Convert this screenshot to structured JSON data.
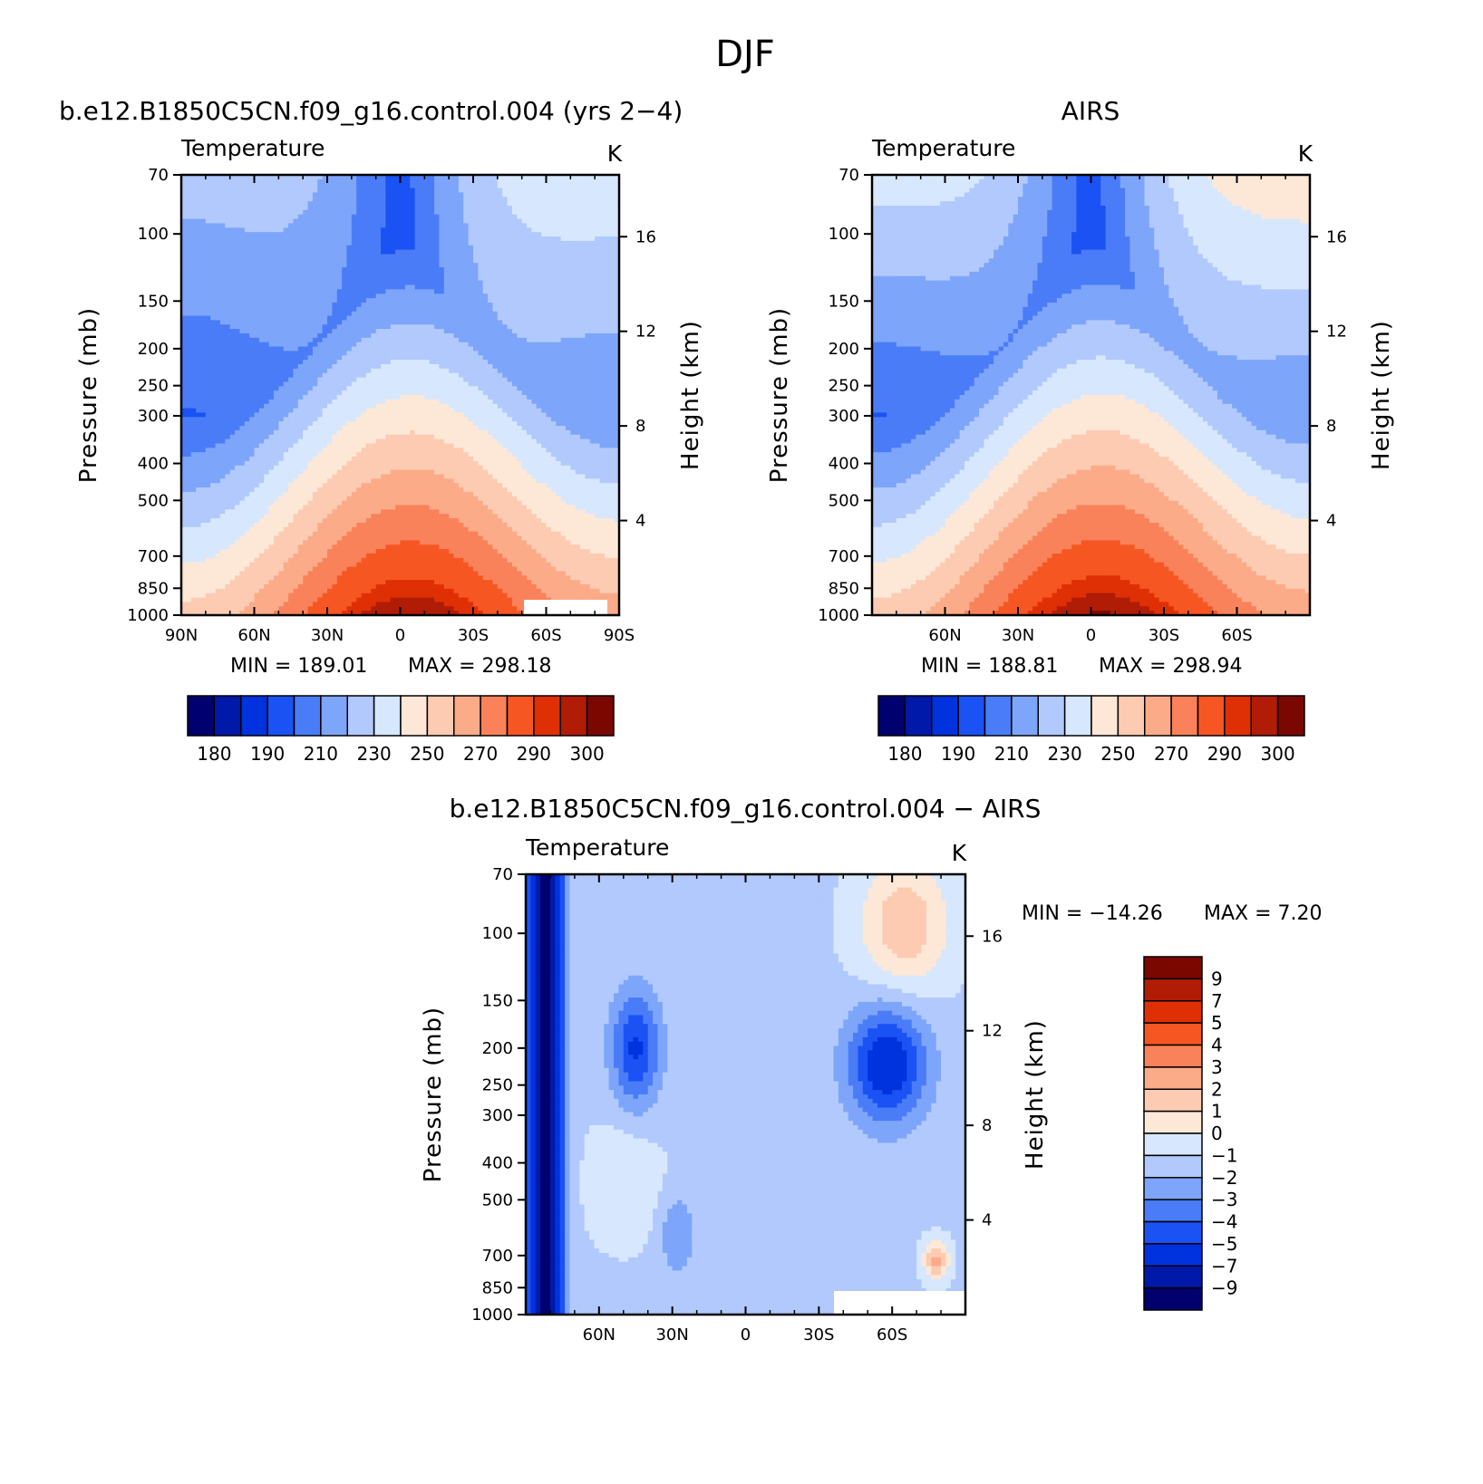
{
  "figure": {
    "main_title": "DJF"
  },
  "chart_data": [
    {
      "type": "heatmap",
      "panel": "model",
      "title": "b.e12.B1850C5CN.f09_g16.control.004 (yrs 2−4)",
      "left_label": "Temperature",
      "units": "K",
      "ylabel": "Pressure (mb)",
      "ylabel_right": "Height (km)",
      "x_tick_labels": [
        "90N",
        "60N",
        "30N",
        "0",
        "30S",
        "60S",
        "90S"
      ],
      "x_ticks": [
        90,
        60,
        30,
        0,
        -30,
        -60,
        -90
      ],
      "xlim": [
        90,
        -90
      ],
      "y_ticks": [
        70,
        100,
        150,
        200,
        250,
        300,
        400,
        500,
        700,
        850,
        1000
      ],
      "y_tick_labels": [
        "70",
        "100",
        "150",
        "200",
        "250",
        "300",
        "400",
        "500",
        "700",
        "850",
        "1000"
      ],
      "ylim": [
        70,
        1000
      ],
      "y_scale": "log",
      "height_ticks": [
        16,
        12,
        8,
        4
      ],
      "height_tick_labels": [
        "16",
        "12",
        "8",
        "4"
      ],
      "min_label": "MIN =  189.01",
      "max_label": "MAX =  298.18",
      "min": 189.01,
      "max": 298.18,
      "contour_levels": [
        180,
        185,
        190,
        200,
        210,
        220,
        230,
        240,
        250,
        260,
        270,
        280,
        290,
        295,
        300
      ],
      "colorbar_labels": [
        "180",
        "190",
        "210",
        "230",
        "250",
        "270",
        "290",
        "300"
      ]
    },
    {
      "type": "heatmap",
      "panel": "obs",
      "title": "AIRS",
      "left_label": "Temperature",
      "units": "K",
      "ylabel": "Pressure (mb)",
      "ylabel_right": "Height (km)",
      "x_tick_labels": [
        "60N",
        "30N",
        "0",
        "30S",
        "60S"
      ],
      "x_ticks": [
        60,
        30,
        0,
        -30,
        -60
      ],
      "xlim": [
        90,
        -90
      ],
      "y_ticks": [
        70,
        100,
        150,
        200,
        250,
        300,
        400,
        500,
        700,
        850,
        1000
      ],
      "y_tick_labels": [
        "70",
        "100",
        "150",
        "200",
        "250",
        "300",
        "400",
        "500",
        "700",
        "850",
        "1000"
      ],
      "ylim": [
        70,
        1000
      ],
      "y_scale": "log",
      "height_ticks": [
        16,
        12,
        8,
        4
      ],
      "height_tick_labels": [
        "16",
        "12",
        "8",
        "4"
      ],
      "min_label": "MIN =  188.81",
      "max_label": "MAX =  298.94",
      "min": 188.81,
      "max": 298.94,
      "contour_levels": [
        180,
        185,
        190,
        200,
        210,
        220,
        230,
        240,
        250,
        260,
        270,
        280,
        290,
        295,
        300
      ],
      "colorbar_labels": [
        "180",
        "190",
        "210",
        "230",
        "250",
        "270",
        "290",
        "300"
      ]
    },
    {
      "type": "heatmap",
      "panel": "difference",
      "title": "b.e12.B1850C5CN.f09_g16.control.004 − AIRS",
      "left_label": "Temperature",
      "units": "K",
      "ylabel": "Pressure (mb)",
      "ylabel_right": "Height (km)",
      "x_tick_labels": [
        "60N",
        "30N",
        "0",
        "30S",
        "60S"
      ],
      "x_ticks": [
        60,
        30,
        0,
        -30,
        -60
      ],
      "xlim": [
        90,
        -90
      ],
      "y_ticks": [
        70,
        100,
        150,
        200,
        250,
        300,
        400,
        500,
        700,
        850,
        1000
      ],
      "y_tick_labels": [
        "70",
        "100",
        "150",
        "200",
        "250",
        "300",
        "400",
        "500",
        "700",
        "850",
        "1000"
      ],
      "ylim": [
        70,
        1000
      ],
      "y_scale": "log",
      "height_ticks": [
        16,
        12,
        8,
        4
      ],
      "height_tick_labels": [
        "16",
        "12",
        "8",
        "4"
      ],
      "min_label": "MIN = −14.26",
      "max_label": "MAX =    7.20",
      "min": -14.26,
      "max": 7.2,
      "contour_levels": [
        -9,
        -7,
        -5,
        -4,
        -3,
        -2,
        -1,
        0,
        1,
        2,
        3,
        4,
        5,
        7,
        9
      ],
      "colorbar_labels": [
        "9",
        "7",
        "5",
        "4",
        "3",
        "2",
        "1",
        "0",
        "−1",
        "−2",
        "−3",
        "−4",
        "−5",
        "−7",
        "−9"
      ]
    }
  ],
  "colors": {
    "palette": [
      "#00006e",
      "#0019a8",
      "#0033dd",
      "#1a52f4",
      "#4a7cf8",
      "#7da5fa",
      "#b1c9fc",
      "#d7e7fd",
      "#fde8d7",
      "#fccbb2",
      "#fbab88",
      "#f9825a",
      "#f65722",
      "#df3005",
      "#b01c05",
      "#7a0800"
    ],
    "panel_missing": "#ffffff",
    "axis": "#000000"
  }
}
